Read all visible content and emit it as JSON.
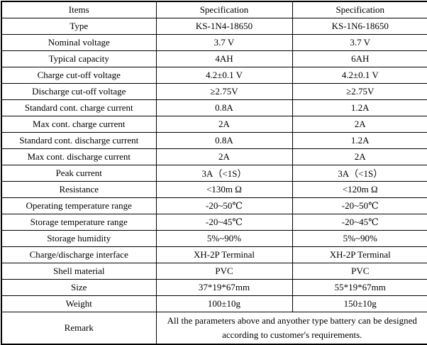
{
  "table": {
    "headers": [
      "Items",
      "Specification",
      "Specification"
    ],
    "rows": [
      [
        "Type",
        "KS-1N4-18650",
        "KS-1N6-18650"
      ],
      [
        "Nominal voltage",
        "3.7 V",
        "3.7 V"
      ],
      [
        "Typical capacity",
        "4AH",
        "6AH"
      ],
      [
        "Charge cut-off voltage",
        "4.2±0.1 V",
        "4.2±0.1 V"
      ],
      [
        "Discharge cut-off voltage",
        "≥2.75V",
        "≥2.75V"
      ],
      [
        "Standard cont. charge current",
        "0.8A",
        "1.2A"
      ],
      [
        "Max cont. charge current",
        "2A",
        "2A"
      ],
      [
        "Standard cont. discharge current",
        "0.8A",
        "1.2A"
      ],
      [
        "Max cont. discharge current",
        "2A",
        "2A"
      ],
      [
        "Peak current",
        "3A（<1S）",
        "3A（<1S）"
      ],
      [
        "Resistance",
        "<130m Ω",
        "<120m Ω"
      ],
      [
        "Operating temperature range",
        "-20~50℃",
        "-20~50℃"
      ],
      [
        "Storage temperature range",
        "-20~45℃",
        "-20~45℃"
      ],
      [
        "Storage humidity",
        "5%~90%",
        "5%~90%"
      ],
      [
        "Charge/discharge interface",
        "XH-2P Terminal",
        "XH-2P Terminal"
      ],
      [
        "Shell material",
        "PVC",
        "PVC"
      ],
      [
        "Size",
        "37*19*67mm",
        "55*19*67mm"
      ],
      [
        "Weight",
        "100±10g",
        "150±10g"
      ]
    ],
    "remark": {
      "label": "Remark",
      "text": "All the parameters above and anyother type battery can be designed according to customer's requirements."
    }
  },
  "colors": {
    "border": "#000000",
    "text": "#000000",
    "background": "#ffffff"
  }
}
